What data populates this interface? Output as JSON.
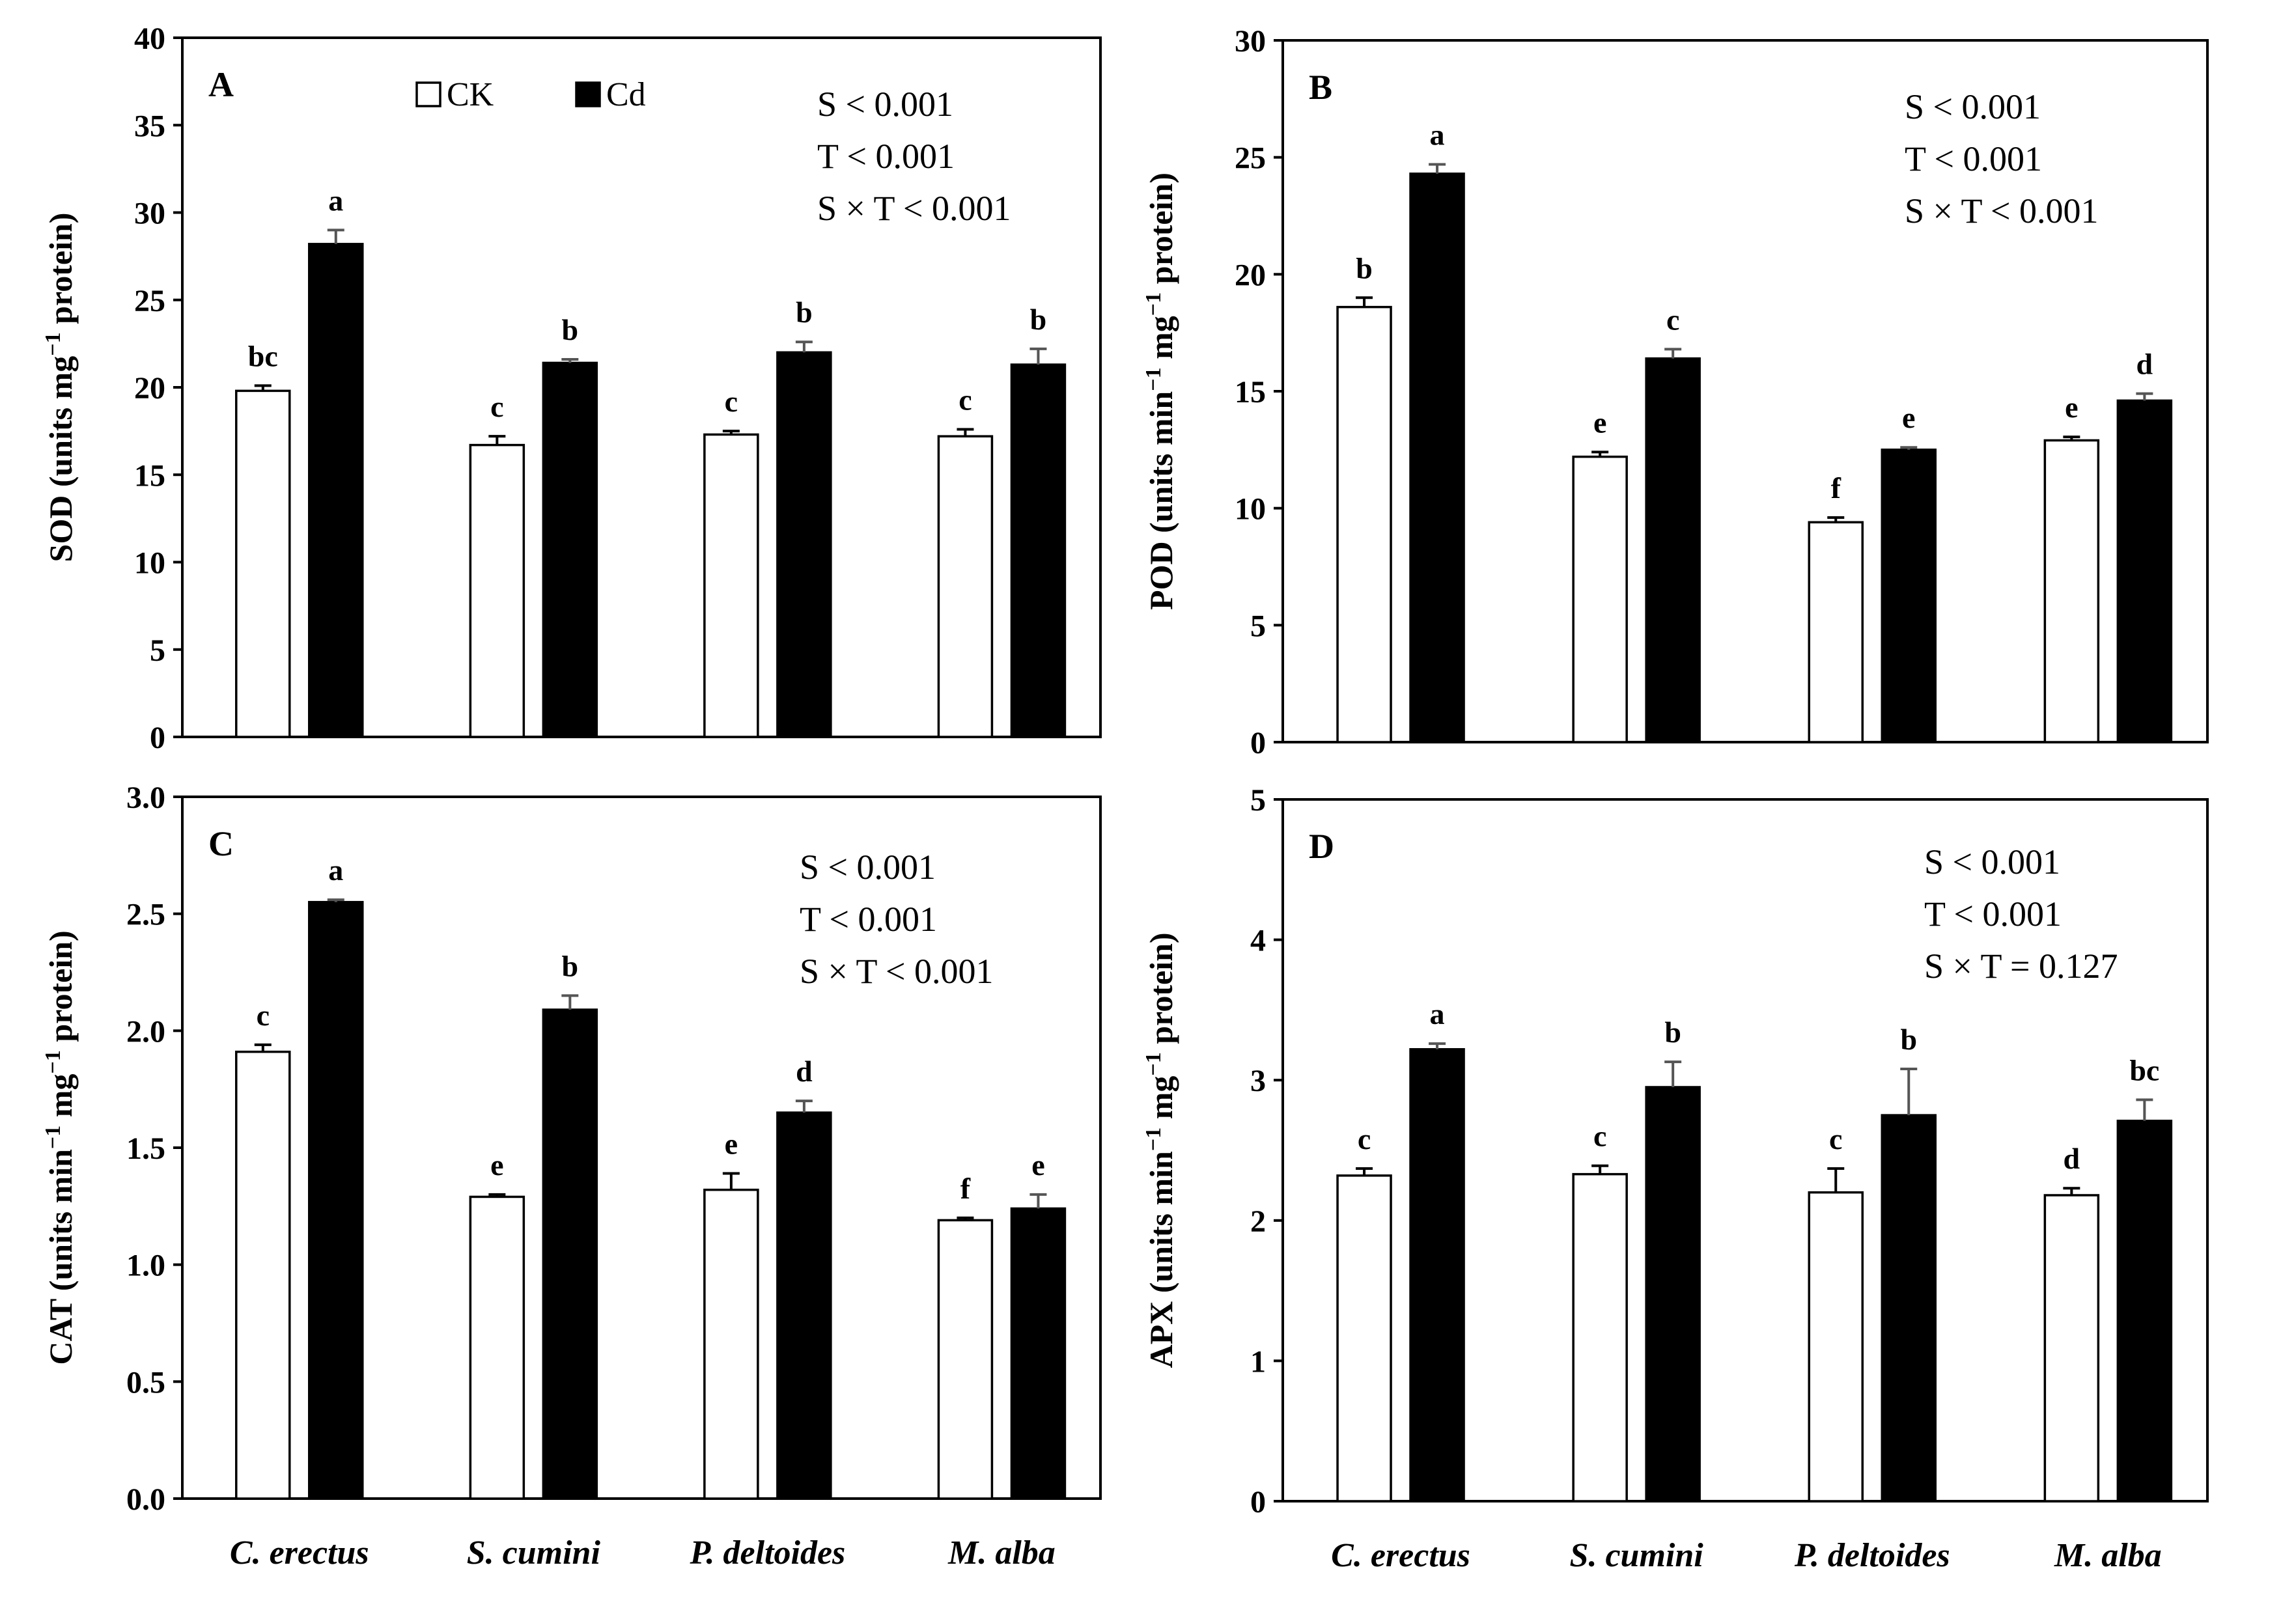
{
  "legend": {
    "entries": [
      {
        "name": "CK",
        "fill": "#ffffff"
      },
      {
        "name": "Cd",
        "fill": "#000000"
      }
    ]
  },
  "chart_data": [
    {
      "type": "bar",
      "panel": "A",
      "ylabel": [
        "SOD (units mg",
        "−1",
        " protein)"
      ],
      "ylim": [
        0,
        40
      ],
      "yticks": [
        0,
        5,
        10,
        15,
        20,
        25,
        30,
        35,
        40
      ],
      "ytick_labels": [
        "0",
        "5",
        "10",
        "15",
        "20",
        "25",
        "30",
        "35",
        "40"
      ],
      "categories": [
        "C. erectus",
        "S. cumini",
        "P. deltoides",
        "M. alba"
      ],
      "series": [
        {
          "name": "CK",
          "values": [
            19.8,
            16.7,
            17.3,
            17.2
          ],
          "errors": [
            0.3,
            0.5,
            0.2,
            0.4
          ],
          "labels": [
            "bc",
            "c",
            "c",
            "c"
          ]
        },
        {
          "name": "Cd",
          "values": [
            28.2,
            21.4,
            22.0,
            21.3
          ],
          "errors": [
            0.8,
            0.2,
            0.6,
            0.9
          ],
          "labels": [
            "a",
            "b",
            "b",
            "b"
          ]
        }
      ],
      "stats": [
        "S < 0.001",
        "T < 0.001",
        "S × T < 0.001"
      ],
      "show_legend": true
    },
    {
      "type": "bar",
      "panel": "B",
      "ylabel": [
        "POD (units min",
        "−1",
        " mg",
        "−1",
        "  protein)"
      ],
      "ylim": [
        0,
        30
      ],
      "yticks": [
        0,
        5,
        10,
        15,
        20,
        25,
        30
      ],
      "ytick_labels": [
        "0",
        "5",
        "10",
        "15",
        "20",
        "25",
        "30"
      ],
      "categories": [
        "C. erectus",
        "S. cumini",
        "P. deltoides",
        "M. alba"
      ],
      "series": [
        {
          "name": "CK",
          "values": [
            18.6,
            12.2,
            9.4,
            12.9
          ],
          "errors": [
            0.4,
            0.2,
            0.2,
            0.15
          ],
          "labels": [
            "b",
            "e",
            "f",
            "e"
          ]
        },
        {
          "name": "Cd",
          "values": [
            24.3,
            16.4,
            12.5,
            14.6
          ],
          "errors": [
            0.4,
            0.4,
            0.1,
            0.3
          ],
          "labels": [
            "a",
            "c",
            "e",
            "d"
          ]
        }
      ],
      "stats": [
        "S < 0.001",
        "T < 0.001",
        "S × T < 0.001"
      ],
      "show_legend": false
    },
    {
      "type": "bar",
      "panel": "C",
      "ylabel": [
        "CAT (units min",
        "−1",
        "  mg",
        "−1",
        "  protein)"
      ],
      "ylim": [
        0,
        3
      ],
      "yticks": [
        0,
        0.5,
        1.0,
        1.5,
        2.0,
        2.5,
        3.0
      ],
      "ytick_labels": [
        "0.0",
        "0.5",
        "1.0",
        "1.5",
        "2.0",
        "2.5",
        "3.0"
      ],
      "categories": [
        "C. erectus",
        "S. cumini",
        "P. deltoides",
        "M. alba"
      ],
      "series": [
        {
          "name": "CK",
          "values": [
            1.91,
            1.29,
            1.32,
            1.19
          ],
          "errors": [
            0.03,
            0.01,
            0.07,
            0.01
          ],
          "labels": [
            "c",
            "e",
            "e",
            "f"
          ]
        },
        {
          "name": "Cd",
          "values": [
            2.55,
            2.09,
            1.65,
            1.24
          ],
          "errors": [
            0.01,
            0.06,
            0.05,
            0.06
          ],
          "labels": [
            "a",
            "b",
            "d",
            "e"
          ]
        }
      ],
      "stats": [
        "S < 0.001",
        "T < 0.001",
        "S × T < 0.001"
      ],
      "show_legend": false
    },
    {
      "type": "bar",
      "panel": "D",
      "ylabel": [
        "APX (units min",
        "−1",
        "  mg",
        "−1",
        "  protein)"
      ],
      "ylim": [
        0,
        5
      ],
      "yticks": [
        0,
        1,
        2,
        3,
        4,
        5
      ],
      "ytick_labels": [
        "0",
        "1",
        "2",
        "3",
        "4",
        "5"
      ],
      "categories": [
        "C. erectus",
        "S. cumini",
        "P. deltoides",
        "M. alba"
      ],
      "series": [
        {
          "name": "CK",
          "values": [
            2.32,
            2.33,
            2.2,
            2.18
          ],
          "errors": [
            0.05,
            0.06,
            0.17,
            0.05
          ],
          "labels": [
            "c",
            "c",
            "c",
            "d"
          ]
        },
        {
          "name": "Cd",
          "values": [
            3.22,
            2.95,
            2.75,
            2.71
          ],
          "errors": [
            0.04,
            0.18,
            0.33,
            0.15
          ],
          "labels": [
            "a",
            "b",
            "b",
            "bc"
          ]
        }
      ],
      "stats": [
        "S < 0.001",
        "T < 0.001",
        "S × T = 0.127"
      ],
      "show_legend": false
    }
  ]
}
